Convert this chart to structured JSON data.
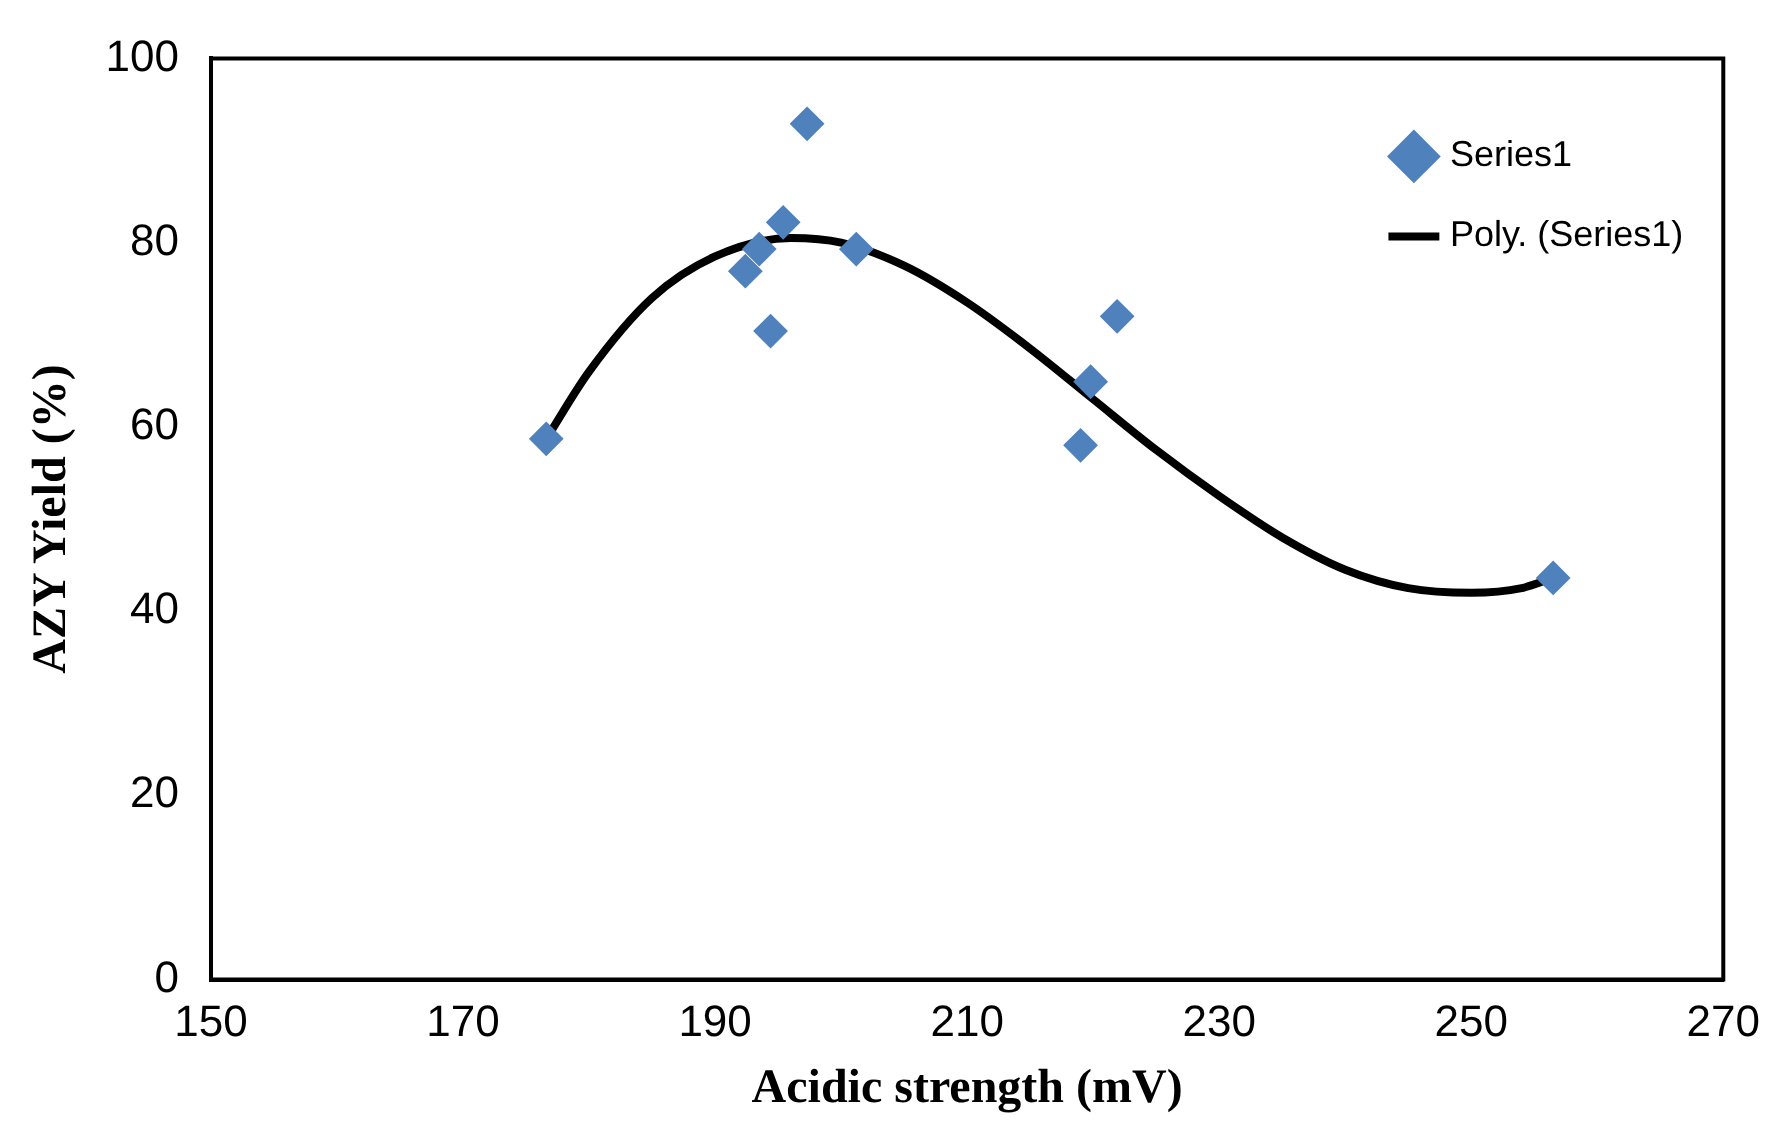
{
  "chart_data": {
    "type": "scatter",
    "xlabel": "Acidic strength (mV)",
    "ylabel": "AZY Yield (%)",
    "xlim": [
      150,
      270
    ],
    "xticks": [
      150,
      170,
      190,
      210,
      230,
      250,
      270
    ],
    "ylim": [
      0,
      100
    ],
    "yticks": [
      0,
      20,
      40,
      60,
      80,
      100
    ],
    "legend": "top right",
    "marker": "diamond",
    "series": [
      {
        "name": "Series1",
        "type": "scatter",
        "color": "#4f81bd",
        "x": [
          176.6,
          197.3,
          195.4,
          193.5,
          192.4,
          194.4,
          201.2,
          221.9,
          219.8,
          219.0,
          256.5
        ],
        "values": [
          58.7,
          92.9,
          82.2,
          79.3,
          76.9,
          70.4,
          79.3,
          72.0,
          64.9,
          58.0,
          43.6
        ]
      },
      {
        "name": "Poly. (Series1)",
        "type": "line",
        "color": "#000000",
        "marker": "none",
        "line_style": "solid",
        "x": [
          176.6,
          180,
          185,
          190,
          196,
          200,
          205,
          210,
          215,
          220,
          225,
          230,
          235,
          240,
          245,
          250,
          254,
          256.5
        ],
        "values": [
          58.7,
          66,
          74,
          78.5,
          80.5,
          80,
          77.5,
          73.5,
          68.5,
          63,
          57.5,
          52.5,
          48,
          44.5,
          42.5,
          42,
          42.5,
          43.6
        ]
      }
    ]
  }
}
